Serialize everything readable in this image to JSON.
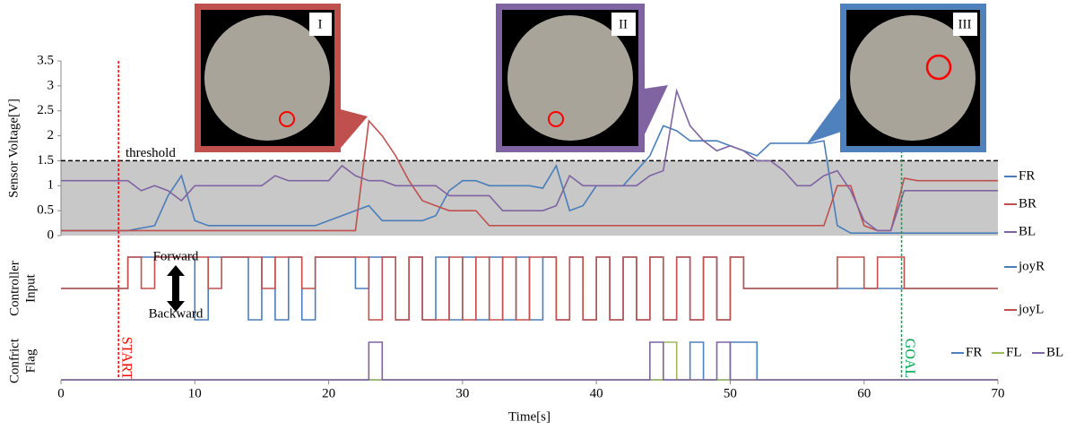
{
  "chart_data": [
    {
      "type": "line",
      "ylabel": [
        "Sensor Voltage[V]"
      ],
      "x": [
        0,
        1,
        2,
        3,
        4,
        5,
        6,
        7,
        8,
        9,
        10,
        11,
        12,
        13,
        14,
        15,
        16,
        17,
        18,
        19,
        20,
        21,
        22,
        23,
        24,
        25,
        26,
        27,
        28,
        29,
        30,
        31,
        32,
        33,
        34,
        35,
        36,
        37,
        38,
        39,
        40,
        41,
        42,
        43,
        44,
        45,
        46,
        47,
        48,
        49,
        50,
        51,
        52,
        53,
        54,
        55,
        56,
        57,
        58,
        59,
        60,
        61,
        62,
        63,
        64,
        65,
        66,
        67,
        68,
        69,
        70
      ],
      "xlim": [
        0,
        70
      ],
      "ylim": [
        0,
        3.5
      ],
      "yticks": [
        0,
        0.5,
        1,
        1.5,
        2,
        2.5,
        3,
        3.5
      ],
      "threshold": {
        "value": 1.5,
        "label": "threshold"
      },
      "markers": [
        {
          "x": 4.3,
          "label": "START",
          "color": "#ff0000"
        },
        {
          "x": 62.8,
          "label": "GOAL",
          "color": "#00a651"
        }
      ],
      "series": [
        {
          "name": "FR",
          "color": "#4a7ebb",
          "values": [
            0.1,
            0.1,
            0.1,
            0.1,
            0.1,
            0.1,
            0.15,
            0.2,
            0.8,
            1.2,
            0.3,
            0.2,
            0.2,
            0.2,
            0.2,
            0.2,
            0.2,
            0.2,
            0.2,
            0.2,
            0.3,
            0.4,
            0.5,
            0.6,
            0.3,
            0.3,
            0.3,
            0.3,
            0.4,
            0.9,
            1.1,
            1.1,
            1.0,
            1.0,
            1.0,
            1.0,
            0.95,
            1.4,
            0.5,
            0.6,
            1.0,
            1.0,
            1.0,
            1.3,
            1.6,
            2.2,
            2.1,
            1.9,
            1.9,
            1.9,
            1.8,
            1.7,
            1.6,
            1.85,
            1.85,
            1.85,
            1.85,
            1.9,
            0.2,
            0.05,
            0.05,
            0.05,
            0.05,
            0.05,
            0.05,
            0.05,
            0.05,
            0.05,
            0.05,
            0.05,
            0.05
          ]
        },
        {
          "name": "BR",
          "color": "#c0504d",
          "values": [
            0.1,
            0.1,
            0.1,
            0.1,
            0.1,
            0.1,
            0.1,
            0.1,
            0.1,
            0.1,
            0.1,
            0.1,
            0.1,
            0.1,
            0.1,
            0.1,
            0.1,
            0.1,
            0.1,
            0.1,
            0.1,
            0.1,
            0.1,
            2.3,
            2.0,
            1.6,
            1.1,
            0.7,
            0.6,
            0.5,
            0.5,
            0.5,
            0.2,
            0.2,
            0.2,
            0.2,
            0.2,
            0.2,
            0.2,
            0.2,
            0.2,
            0.2,
            0.2,
            0.2,
            0.2,
            0.2,
            0.2,
            0.2,
            0.2,
            0.2,
            0.2,
            0.2,
            0.2,
            0.2,
            0.2,
            0.2,
            0.2,
            0.2,
            1.0,
            1.0,
            0.2,
            0.1,
            0.1,
            1.15,
            1.1,
            1.1,
            1.1,
            1.1,
            1.1,
            1.1,
            1.1
          ]
        },
        {
          "name": "BL",
          "color": "#8064a2",
          "values": [
            1.1,
            1.1,
            1.1,
            1.1,
            1.1,
            1.1,
            0.9,
            1.0,
            0.9,
            0.7,
            1.0,
            1.0,
            1.0,
            1.0,
            1.0,
            1.0,
            1.2,
            1.1,
            1.1,
            1.1,
            1.1,
            1.4,
            1.2,
            1.1,
            1.1,
            1.0,
            1.0,
            1.0,
            1.0,
            0.8,
            0.8,
            0.8,
            0.8,
            0.5,
            0.5,
            0.5,
            0.5,
            0.6,
            1.2,
            1.0,
            1.0,
            1.0,
            1.0,
            1.0,
            1.2,
            1.3,
            2.9,
            2.2,
            1.9,
            1.7,
            1.8,
            1.7,
            1.5,
            1.5,
            1.3,
            1.0,
            1.0,
            1.2,
            1.3,
            0.9,
            0.3,
            0.1,
            0.1,
            0.9,
            0.9,
            0.9,
            0.9,
            0.9,
            0.9,
            0.9,
            0.9
          ]
        }
      ]
    },
    {
      "type": "step",
      "ylabel": [
        "Controller",
        "Input"
      ],
      "annotations": [
        "Forward",
        "Backward"
      ],
      "x": [
        0,
        1,
        2,
        3,
        4,
        5,
        6,
        7,
        8,
        9,
        10,
        11,
        12,
        13,
        14,
        15,
        16,
        17,
        18,
        19,
        20,
        21,
        22,
        23,
        24,
        25,
        26,
        27,
        28,
        29,
        30,
        31,
        32,
        33,
        34,
        35,
        36,
        37,
        38,
        39,
        40,
        41,
        42,
        43,
        44,
        45,
        46,
        47,
        48,
        49,
        50,
        51,
        52,
        53,
        54,
        55,
        56,
        57,
        58,
        59,
        60,
        61,
        62,
        63,
        64,
        65,
        66,
        67,
        68,
        69,
        70
      ],
      "xlim": [
        0,
        70
      ],
      "ylim": [
        -1,
        1
      ],
      "series": [
        {
          "name": "joyR",
          "color": "#4a7ebb",
          "values": [
            0,
            0,
            0,
            0,
            0,
            1,
            1,
            1,
            1,
            1,
            -1,
            1,
            1,
            1,
            -1,
            1,
            -1,
            1,
            -1,
            1,
            1,
            1,
            0,
            1,
            1,
            -1,
            1,
            -1,
            1,
            -1,
            1,
            -1,
            1,
            -1,
            1,
            -1,
            1,
            -1,
            1,
            -1,
            1,
            -1,
            1,
            -1,
            1,
            -1,
            1,
            -1,
            1,
            -1,
            1,
            0,
            0,
            0,
            0,
            0,
            0,
            0,
            0,
            0,
            0,
            0,
            0,
            0,
            0,
            0,
            0,
            0,
            0,
            0,
            0
          ]
        },
        {
          "name": "joyL",
          "color": "#c0504d",
          "values": [
            0,
            0,
            0,
            0,
            0,
            1,
            0,
            1,
            1,
            1,
            1,
            0,
            1,
            1,
            1,
            0,
            1,
            1,
            0,
            1,
            1,
            1,
            1,
            -1,
            1,
            -1,
            1,
            -1,
            -1,
            1,
            -1,
            1,
            -1,
            1,
            -1,
            1,
            1,
            -1,
            1,
            -1,
            1,
            -1,
            1,
            -1,
            1,
            -1,
            1,
            -1,
            1,
            -1,
            1,
            0,
            0,
            0,
            0,
            0,
            0,
            0,
            1,
            1,
            0,
            1,
            1,
            0,
            0,
            0,
            0,
            0,
            0,
            0,
            0
          ]
        }
      ]
    },
    {
      "type": "step",
      "ylabel": [
        "Confrict",
        "Flag"
      ],
      "xlabel": "Time[s]",
      "x": [
        0,
        1,
        2,
        3,
        4,
        5,
        6,
        7,
        8,
        9,
        10,
        11,
        12,
        13,
        14,
        15,
        16,
        17,
        18,
        19,
        20,
        21,
        22,
        23,
        24,
        25,
        26,
        27,
        28,
        29,
        30,
        31,
        32,
        33,
        34,
        35,
        36,
        37,
        38,
        39,
        40,
        41,
        42,
        43,
        44,
        45,
        46,
        47,
        48,
        49,
        50,
        51,
        52,
        53,
        54,
        55,
        56,
        57,
        58,
        59,
        60,
        61,
        62,
        63,
        64,
        65,
        66,
        67,
        68,
        69,
        70
      ],
      "xlim": [
        0,
        70
      ],
      "ylim": [
        0,
        1
      ],
      "xticks": [
        0,
        10,
        20,
        30,
        40,
        50,
        60,
        70
      ],
      "series": [
        {
          "name": "FR",
          "color": "#4f81bd",
          "values": [
            0,
            0,
            0,
            0,
            0,
            0,
            0,
            0,
            0,
            0,
            0,
            0,
            0,
            0,
            0,
            0,
            0,
            0,
            0,
            0,
            0,
            0,
            0,
            0,
            0,
            0,
            0,
            0,
            0,
            0,
            0,
            0,
            0,
            0,
            0,
            0,
            0,
            0,
            0,
            0,
            0,
            0,
            0,
            0,
            0,
            0,
            0,
            1,
            0,
            0,
            1,
            1,
            0,
            0,
            0,
            0,
            0,
            0,
            0,
            0,
            0,
            0,
            0,
            0,
            0,
            0,
            0,
            0,
            0,
            0,
            0
          ]
        },
        {
          "name": "FL",
          "color": "#9bbb59",
          "values": [
            0,
            0,
            0,
            0,
            0,
            0,
            0,
            0,
            0,
            0,
            0,
            0,
            0,
            0,
            0,
            0,
            0,
            0,
            0,
            0,
            0,
            0,
            0,
            0,
            0,
            0,
            0,
            0,
            0,
            0,
            0,
            0,
            0,
            0,
            0,
            0,
            0,
            0,
            0,
            0,
            0,
            0,
            0,
            0,
            0,
            1,
            0,
            0,
            0,
            0,
            0,
            0,
            0,
            0,
            0,
            0,
            0,
            0,
            0,
            0,
            0,
            0,
            0,
            0,
            0,
            0,
            0,
            0,
            0,
            0,
            0
          ]
        },
        {
          "name": "BL",
          "color": "#8064a2",
          "values": [
            0,
            0,
            0,
            0,
            0,
            0,
            0,
            0,
            0,
            0,
            0,
            0,
            0,
            0,
            0,
            0,
            0,
            0,
            0,
            0,
            0,
            0,
            0,
            1,
            0,
            0,
            0,
            0,
            0,
            0,
            0,
            0,
            0,
            0,
            0,
            0,
            0,
            0,
            0,
            0,
            0,
            0,
            0,
            0,
            1,
            0,
            0,
            0,
            0,
            1,
            0,
            0,
            0,
            0,
            0,
            0,
            0,
            0,
            0,
            0,
            0,
            0,
            0,
            0,
            0,
            0,
            0,
            0,
            0,
            0,
            0
          ]
        }
      ]
    }
  ],
  "insets": [
    {
      "label": "I",
      "color": "#c0504d"
    },
    {
      "label": "II",
      "color": "#8064a2"
    },
    {
      "label": "III",
      "color": "#4f81bd"
    }
  ]
}
